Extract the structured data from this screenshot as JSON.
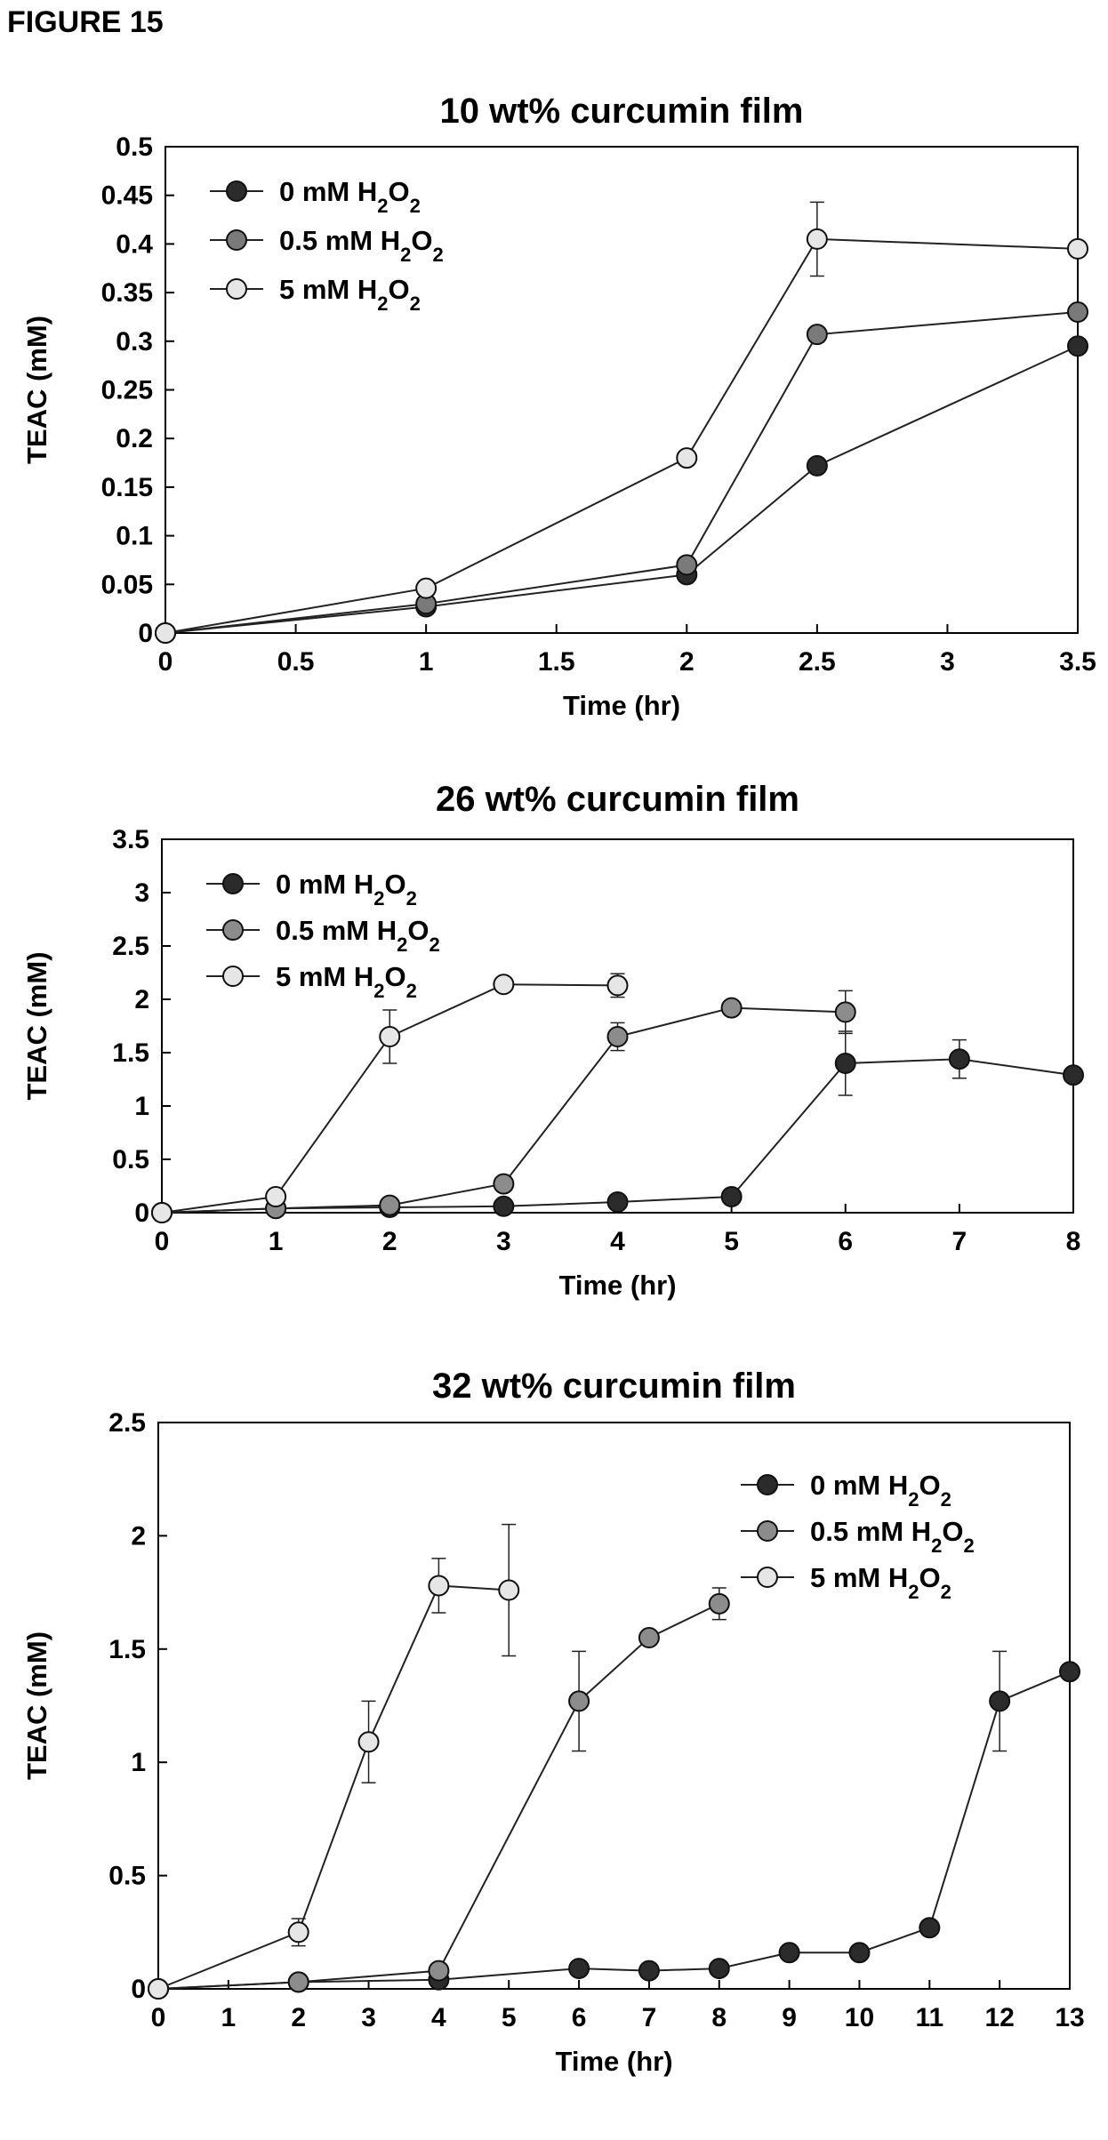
{
  "figure_label": "FIGURE 15",
  "chart_data": [
    {
      "type": "line",
      "title": "10 wt% curcumin film",
      "xlabel": "Time (hr)",
      "ylabel": "TEAC (mM)",
      "xlim": [
        0,
        3.5
      ],
      "ylim": [
        0,
        0.5
      ],
      "xticks": [
        0,
        0.5,
        1,
        1.5,
        2,
        2.5,
        3,
        3.5
      ],
      "yticks": [
        0,
        0.05,
        0.1,
        0.15,
        0.2,
        0.25,
        0.3,
        0.35,
        0.4,
        0.45,
        0.5
      ],
      "legend_position": "top-left",
      "grid": false,
      "series": [
        {
          "name": "0 mM H2O2",
          "color": "#2b2b2b",
          "x": [
            0,
            1,
            2,
            2.5,
            3.5
          ],
          "y": [
            0,
            0.027,
            0.06,
            0.172,
            0.295
          ],
          "err": [
            0,
            0,
            0,
            0,
            0
          ]
        },
        {
          "name": "0.5 mM H2O2",
          "color": "#7a7a7a",
          "x": [
            0,
            1,
            2,
            2.5,
            3.5
          ],
          "y": [
            0,
            0.03,
            0.07,
            0.307,
            0.33
          ],
          "err": [
            0,
            0,
            0,
            0,
            0
          ]
        },
        {
          "name": "5 mM H2O2",
          "color": "#e6e6e6",
          "x": [
            0,
            1,
            2,
            2.5,
            3.5
          ],
          "y": [
            0,
            0.046,
            0.18,
            0.405,
            0.395
          ],
          "err": [
            0,
            0,
            0,
            0.038,
            0
          ]
        }
      ]
    },
    {
      "type": "line",
      "title": "26 wt% curcumin film",
      "xlabel": "Time (hr)",
      "ylabel": "TEAC (mM)",
      "xlim": [
        0,
        8
      ],
      "ylim": [
        0,
        3.5
      ],
      "xticks": [
        0,
        1,
        2,
        3,
        4,
        5,
        6,
        7,
        8
      ],
      "yticks": [
        0,
        0.5,
        1,
        1.5,
        2,
        2.5,
        3,
        3.5
      ],
      "legend_position": "top-left",
      "grid": false,
      "series": [
        {
          "name": "0 mM H2O2",
          "color": "#2b2b2b",
          "x": [
            0,
            1,
            2,
            3,
            4,
            5,
            6,
            7,
            8
          ],
          "y": [
            0,
            0.04,
            0.05,
            0.06,
            0.1,
            0.15,
            1.4,
            1.44,
            1.29
          ],
          "err": [
            0,
            0,
            0,
            0,
            0,
            0,
            0.3,
            0.18,
            0
          ]
        },
        {
          "name": "0.5 mM H2O2",
          "color": "#8c8c8c",
          "x": [
            0,
            1,
            2,
            3,
            4,
            5,
            6
          ],
          "y": [
            0,
            0.04,
            0.07,
            0.27,
            1.65,
            1.92,
            1.88
          ],
          "err": [
            0,
            0,
            0,
            0,
            0.13,
            0,
            0.2
          ]
        },
        {
          "name": "5 mM H2O2",
          "color": "#e6e6e6",
          "x": [
            0,
            1,
            2,
            3,
            4
          ],
          "y": [
            0,
            0.15,
            1.65,
            2.14,
            2.13
          ],
          "err": [
            0,
            0,
            0.25,
            0,
            0.11
          ]
        }
      ]
    },
    {
      "type": "line",
      "title": "32 wt% curcumin film",
      "xlabel": "Time (hr)",
      "ylabel": "TEAC (mM)",
      "xlim": [
        0,
        13
      ],
      "ylim": [
        0,
        2.5
      ],
      "xticks": [
        0,
        1,
        2,
        3,
        4,
        5,
        6,
        7,
        8,
        9,
        10,
        11,
        12,
        13
      ],
      "yticks": [
        0,
        0.5,
        1,
        1.5,
        2,
        2.5
      ],
      "legend_position": "top-right",
      "grid": false,
      "series": [
        {
          "name": "0 mM H2O2",
          "color": "#2b2b2b",
          "x": [
            0,
            2,
            4,
            6,
            7,
            8,
            9,
            10,
            11,
            12,
            13
          ],
          "y": [
            0,
            0.03,
            0.04,
            0.09,
            0.08,
            0.09,
            0.16,
            0.16,
            0.27,
            1.27,
            1.4
          ],
          "err": [
            0,
            0,
            0,
            0,
            0,
            0,
            0,
            0,
            0,
            0.22,
            0
          ]
        },
        {
          "name": "0.5 mM H2O2",
          "color": "#8c8c8c",
          "x": [
            0,
            2,
            4,
            6,
            7,
            8
          ],
          "y": [
            0,
            0.03,
            0.08,
            1.27,
            1.55,
            1.7
          ],
          "err": [
            0,
            0,
            0,
            0.22,
            0,
            0.07
          ]
        },
        {
          "name": "5 mM H2O2",
          "color": "#e6e6e6",
          "x": [
            0,
            2,
            3,
            4,
            5
          ],
          "y": [
            0,
            0.25,
            1.09,
            1.78,
            1.76
          ],
          "err": [
            0,
            0.06,
            0.18,
            0.12,
            0.29
          ]
        }
      ]
    }
  ]
}
